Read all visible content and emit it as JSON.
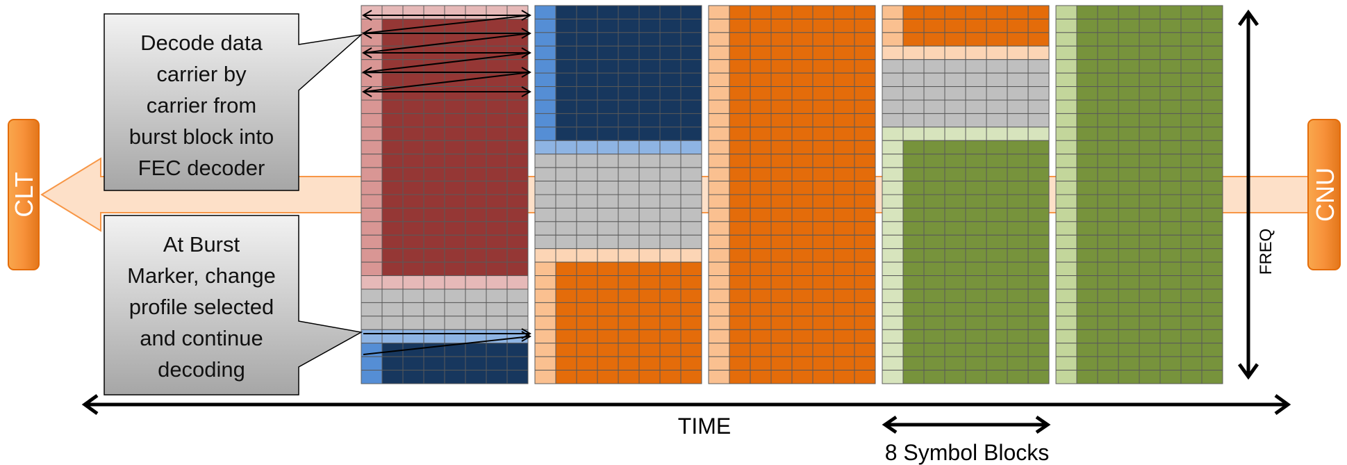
{
  "colors": {
    "burst1_dark": "#953735",
    "burst1_light": "#E6B9B8",
    "burst1_pink": "#D99694",
    "blue_dark": "#17375E",
    "blue_light": "#8EB4E3",
    "blue_mid": "#558ED5",
    "gray": "#BFBFBF",
    "peach": "#FCD5B5",
    "peach_mid": "#FAC090",
    "orange": "#E46C0A",
    "green_dark": "#77933C",
    "green_light": "#D7E4BD",
    "green_mid": "#C3D69B",
    "arrow_fill": "#FCD5B5",
    "endpoint_fill": "#F79646",
    "grid_line": "#595959"
  },
  "callouts": {
    "top": [
      "Decode data",
      "carrier by",
      "carrier from",
      "burst block into",
      "FEC decoder"
    ],
    "bottom": [
      "At Burst",
      "Marker, change",
      "profile selected",
      "and continue",
      "decoding"
    ]
  },
  "endpoints": {
    "left": "CLT",
    "right": "CNU"
  },
  "axes": {
    "time": "TIME",
    "freq": "FREQ",
    "symbol_blocks": "8 Symbol Blocks"
  },
  "grid": {
    "blocks": 5,
    "columns_per_block": 8,
    "rows": 28
  }
}
